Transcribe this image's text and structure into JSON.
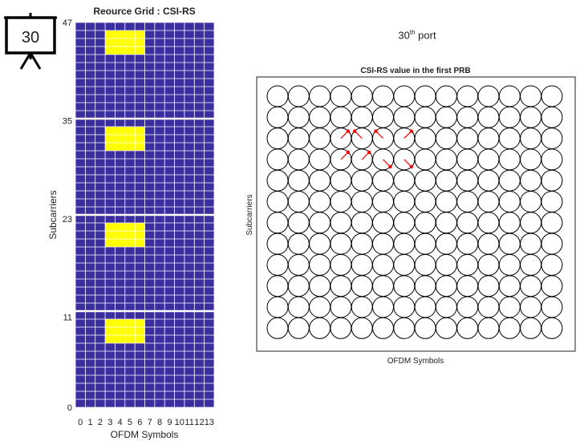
{
  "badge": {
    "label": "30",
    "icon": "presentation-board-icon"
  },
  "port_title": {
    "number": "30",
    "suffix": "th",
    "word": "port"
  },
  "colors": {
    "grid_bg": "#3b2fa0",
    "grid_line": "#ffffff",
    "csi_re": "#ffff00",
    "axis": "#222222",
    "arrow": "#ff0000",
    "circle": "#000000"
  },
  "chart_data": [
    {
      "type": "heatmap",
      "title": "Reource Grid : CSI-RS",
      "xlabel": "OFDM Symbols",
      "ylabel": "Subcarriers",
      "x_ticks": [
        "0",
        "1",
        "2",
        "3",
        "4",
        "5",
        "6",
        "7",
        "8",
        "9",
        "10",
        "11",
        "12",
        "13"
      ],
      "y_ticks": [
        "0",
        "11",
        "23",
        "35",
        "47"
      ],
      "n_symbols": 14,
      "n_subcarriers": 48,
      "prb_size": 12,
      "csi_rs_symbols": [
        3,
        4,
        5,
        6
      ],
      "csi_rs_subcarriers_in_prb": [
        8,
        9,
        10
      ],
      "grid": true
    },
    {
      "type": "scatter",
      "title": "CSI-RS value in the first PRB",
      "xlabel": "OFDM Symbols",
      "ylabel": "Subcarriers",
      "rows": 12,
      "cols": 14,
      "arrows": [
        {
          "row": 2,
          "col": 3,
          "direction": "up-right"
        },
        {
          "row": 2,
          "col": 4,
          "direction": "up-left"
        },
        {
          "row": 2,
          "col": 5,
          "direction": "up-left"
        },
        {
          "row": 2,
          "col": 6,
          "direction": "up-right"
        },
        {
          "row": 3,
          "col": 3,
          "direction": "up-right"
        },
        {
          "row": 3,
          "col": 4,
          "direction": "up-right"
        },
        {
          "row": 3,
          "col": 5,
          "direction": "down-right"
        },
        {
          "row": 3,
          "col": 6,
          "direction": "down-right"
        }
      ]
    }
  ]
}
